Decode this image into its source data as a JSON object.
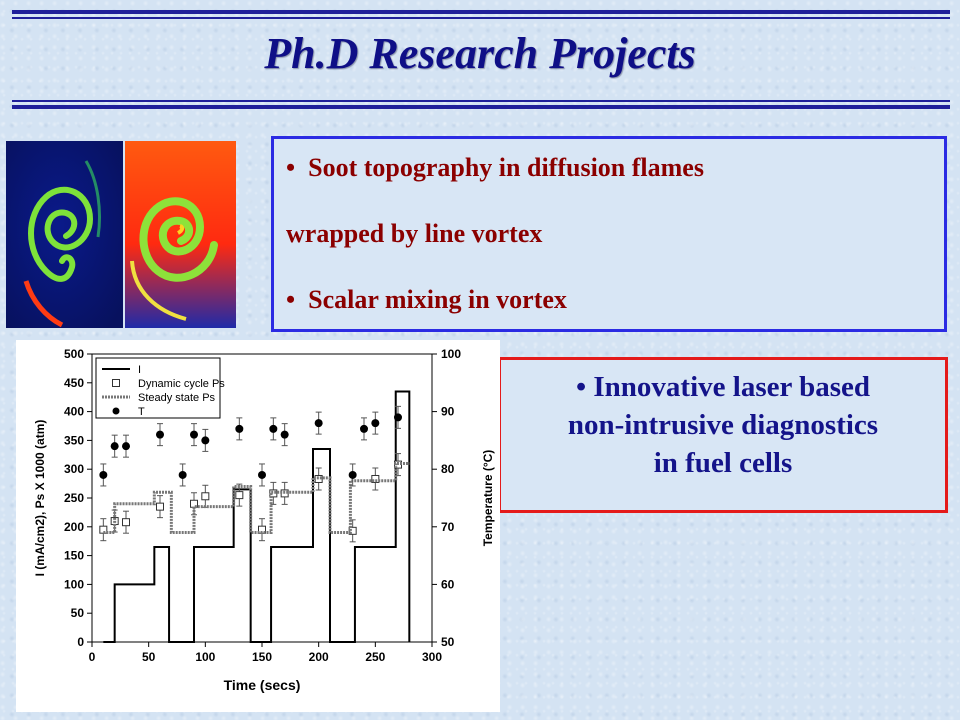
{
  "slide": {
    "title": "Ph.D Research Projects",
    "box1": {
      "bullet1_line1": "Soot topography in diffusion flames",
      "bullet1_line2": "wrapped by line vortex",
      "bullet2": "Scalar mixing in vortex"
    },
    "box2": {
      "line1": "• Innovative laser based",
      "line2": "non-intrusive diagnostics",
      "line3": "in fuel cells"
    },
    "colors": {
      "title": "#0f0f87",
      "box1_border": "#2b2be3",
      "box2_border": "#e41a1a",
      "bullet_text": "#8b0000"
    }
  },
  "chart_data": {
    "type": "line",
    "xlabel": "Time (secs)",
    "ylabel_left": "I (mA/cm2), Ps X 1000 (atm)",
    "ylabel_right": "Temperature (°C)",
    "xlim": [
      0,
      300
    ],
    "ylim_left": [
      0,
      500
    ],
    "ylim_right": [
      50,
      100
    ],
    "x_ticks": [
      0,
      50,
      100,
      150,
      200,
      250,
      300
    ],
    "y_ticks_left": [
      0,
      50,
      100,
      150,
      200,
      250,
      300,
      350,
      400,
      450,
      500
    ],
    "y_ticks_right": [
      50,
      60,
      70,
      80,
      90,
      100
    ],
    "legend_position": "top-left",
    "series": [
      {
        "name": "I",
        "style": "step",
        "x": [
          10,
          20,
          20,
          55,
          55,
          68,
          68,
          70,
          70,
          90,
          90,
          125,
          125,
          140,
          140,
          148,
          148,
          158,
          158,
          195,
          195,
          210,
          210,
          228,
          228,
          232,
          232,
          268,
          268,
          280,
          280
        ],
        "y": [
          0,
          0,
          100,
          100,
          165,
          165,
          0,
          0,
          0,
          0,
          165,
          165,
          265,
          265,
          0,
          0,
          0,
          0,
          165,
          165,
          335,
          335,
          0,
          0,
          0,
          0,
          165,
          165,
          435,
          435,
          0
        ]
      },
      {
        "name": "Dynamic cycle Ps",
        "style": "markers-errorbar",
        "x": [
          10,
          20,
          30,
          60,
          90,
          100,
          130,
          150,
          160,
          170,
          200,
          230,
          250,
          270
        ],
        "y": [
          195,
          210,
          208,
          235,
          240,
          253,
          255,
          195,
          258,
          258,
          283,
          193,
          283,
          308
        ]
      },
      {
        "name": "Steady state Ps",
        "style": "step-dotted",
        "x": [
          10,
          20,
          20,
          55,
          55,
          70,
          70,
          90,
          90,
          125,
          125,
          140,
          140,
          158,
          158,
          195,
          195,
          210,
          210,
          228,
          228,
          268,
          268,
          280
        ],
        "y": [
          190,
          190,
          240,
          240,
          260,
          260,
          190,
          190,
          235,
          235,
          270,
          270,
          190,
          190,
          260,
          260,
          285,
          285,
          190,
          190,
          280,
          280,
          310,
          310
        ]
      },
      {
        "name": "T",
        "style": "markers-errorbar",
        "axis": "right",
        "x": [
          10,
          20,
          30,
          60,
          80,
          90,
          100,
          130,
          150,
          160,
          170,
          200,
          230,
          240,
          250,
          270
        ],
        "y": [
          79,
          84,
          84,
          86,
          79,
          86,
          85,
          87,
          79,
          87,
          86,
          88,
          79,
          87,
          88,
          89
        ]
      }
    ]
  }
}
